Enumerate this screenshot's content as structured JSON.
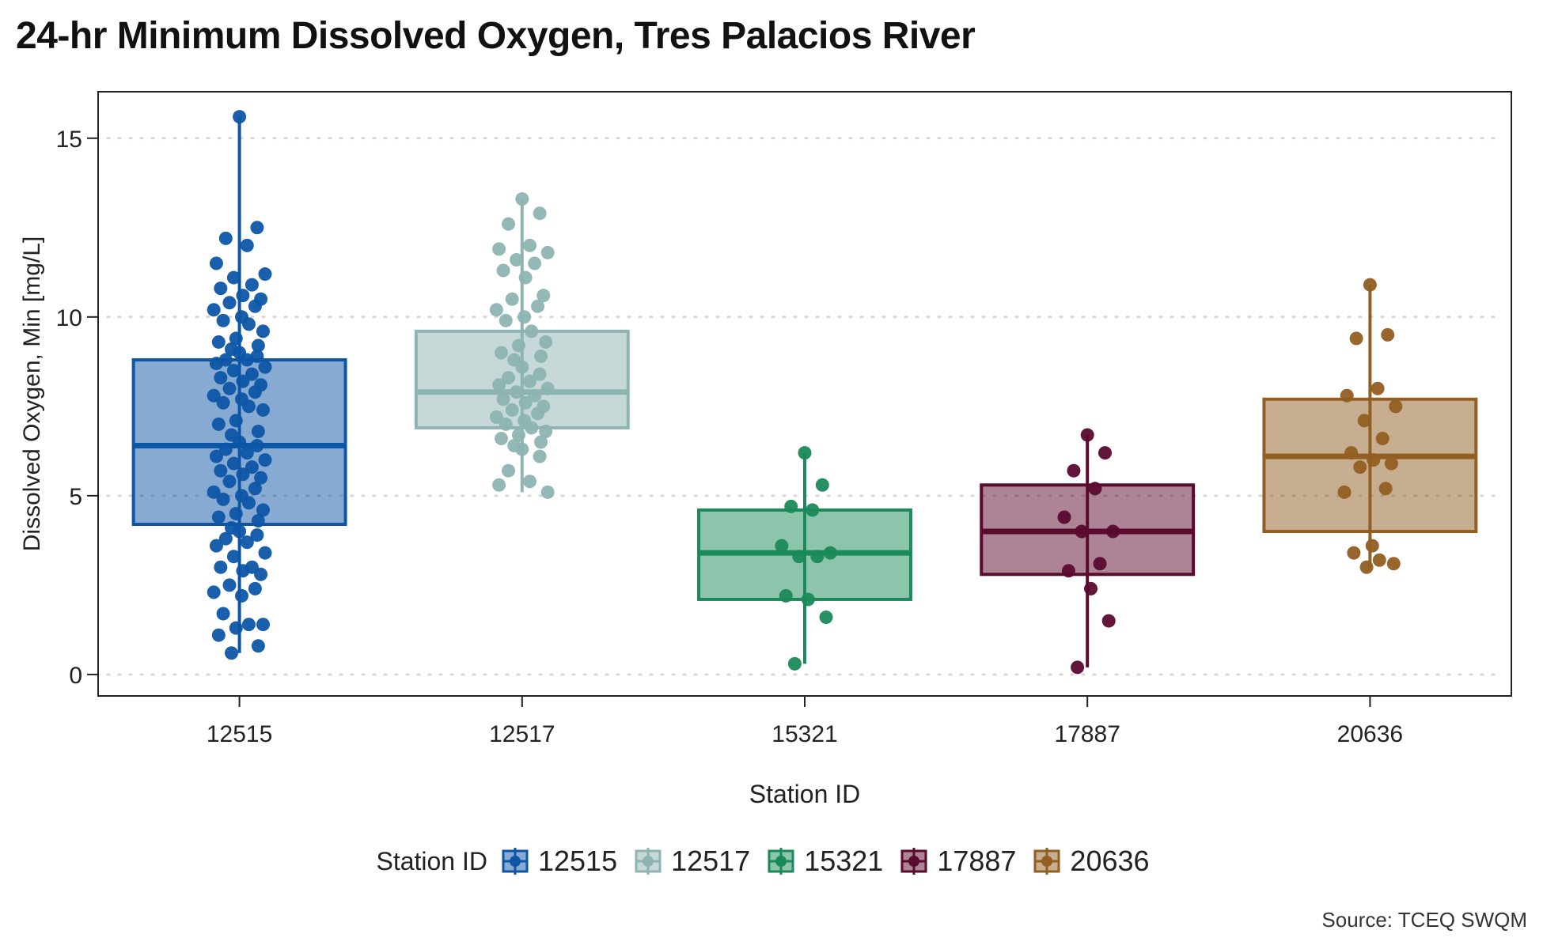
{
  "chart_data": {
    "type": "box",
    "title": "24-hr Minimum Dissolved Oxygen, Tres Palacios River",
    "xlabel": "Station ID",
    "ylabel": "Dissolved Oxygen, Min [mg/L]",
    "caption": "Source: TCEQ SWQM",
    "ylim": [
      -0.6,
      16.3
    ],
    "yticks": [
      "0",
      "5",
      "10",
      "15"
    ],
    "grid": "horizontal dotted",
    "legend": {
      "title": "Station ID",
      "position": "bottom"
    },
    "categories": [
      "12515",
      "12517",
      "15321",
      "17887",
      "20636"
    ],
    "series": [
      {
        "name": "12515",
        "color": "#0d56a6",
        "box": {
          "min": 0.6,
          "q1": 4.2,
          "median": 6.4,
          "q3": 8.8,
          "max": 15.6
        },
        "points": [
          15.6,
          12.5,
          12.2,
          12.0,
          11.5,
          11.2,
          11.1,
          10.9,
          10.8,
          10.6,
          10.5,
          10.4,
          10.3,
          10.2,
          10.0,
          9.9,
          9.8,
          9.6,
          9.4,
          9.3,
          9.2,
          9.1,
          9.0,
          8.9,
          8.8,
          8.8,
          8.7,
          8.6,
          8.5,
          8.4,
          8.3,
          8.2,
          8.1,
          8.0,
          7.9,
          7.8,
          7.7,
          7.6,
          7.5,
          7.4,
          7.1,
          7.0,
          6.8,
          6.7,
          6.5,
          6.4,
          6.3,
          6.2,
          6.1,
          6.0,
          5.9,
          5.8,
          5.7,
          5.6,
          5.5,
          5.4,
          5.2,
          5.1,
          5.0,
          4.9,
          4.8,
          4.6,
          4.5,
          4.4,
          4.3,
          4.1,
          4.0,
          3.9,
          3.8,
          3.7,
          3.6,
          3.4,
          3.3,
          3.0,
          3.0,
          2.9,
          2.8,
          2.5,
          2.4,
          2.3,
          2.2,
          1.7,
          1.4,
          1.4,
          1.3,
          1.1,
          0.8,
          0.6
        ]
      },
      {
        "name": "12517",
        "color": "#8db4b2",
        "box": {
          "min": 5.1,
          "q1": 6.9,
          "median": 7.9,
          "q3": 9.6,
          "max": 13.3
        },
        "points": [
          13.3,
          12.9,
          12.6,
          12.0,
          11.9,
          11.8,
          11.6,
          11.5,
          11.3,
          11.1,
          10.6,
          10.5,
          10.3,
          10.2,
          10.0,
          9.9,
          9.6,
          9.3,
          9.2,
          9.0,
          8.9,
          8.8,
          8.6,
          8.4,
          8.3,
          8.2,
          8.1,
          8.0,
          7.9,
          7.8,
          7.7,
          7.6,
          7.5,
          7.4,
          7.3,
          7.2,
          7.1,
          7.0,
          6.9,
          6.8,
          6.7,
          6.6,
          6.5,
          6.4,
          6.3,
          6.1,
          5.7,
          5.4,
          5.3,
          5.1
        ]
      },
      {
        "name": "15321",
        "color": "#1b8a5a",
        "box": {
          "min": 0.3,
          "q1": 2.1,
          "median": 3.4,
          "q3": 4.6,
          "max": 6.2
        },
        "points": [
          6.2,
          5.3,
          4.7,
          4.6,
          3.6,
          3.4,
          3.3,
          3.3,
          2.2,
          2.1,
          1.6,
          0.3
        ]
      },
      {
        "name": "17887",
        "color": "#5a0a2e",
        "box": {
          "min": 0.2,
          "q1": 2.8,
          "median": 4.0,
          "q3": 5.3,
          "max": 6.7
        },
        "points": [
          6.7,
          6.2,
          5.7,
          5.2,
          4.4,
          4.0,
          4.0,
          3.1,
          2.9,
          2.4,
          1.5,
          0.2
        ]
      },
      {
        "name": "20636",
        "color": "#925e22",
        "box": {
          "min": 3.0,
          "q1": 4.0,
          "median": 6.1,
          "q3": 7.7,
          "max": 10.9
        },
        "points": [
          10.9,
          9.5,
          9.4,
          8.0,
          7.8,
          7.5,
          7.1,
          6.6,
          6.2,
          6.0,
          5.9,
          5.8,
          5.2,
          5.1,
          3.6,
          3.4,
          3.2,
          3.1,
          3.0
        ]
      }
    ]
  }
}
